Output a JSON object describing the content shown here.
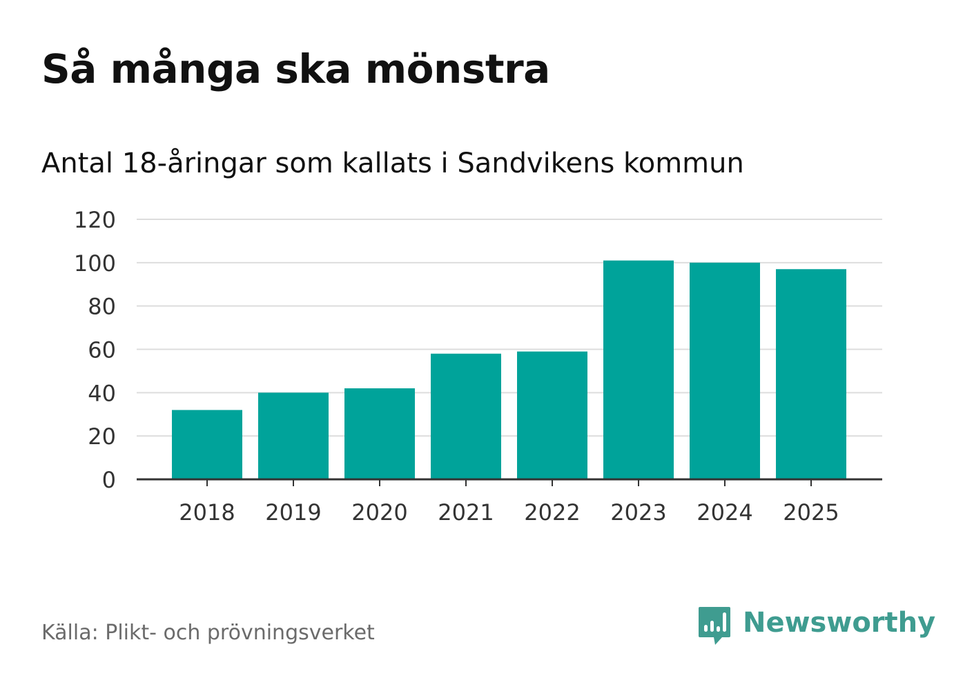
{
  "header": {
    "title": "Så många ska mönstra",
    "subtitle": "Antal 18-åringar som kallats i Sandvikens kommun"
  },
  "footer": {
    "source": "Källa: Plikt- och prövningsverket",
    "brand": "Newsworthy"
  },
  "colors": {
    "bar": "#00a39a",
    "grid": "#dddddd",
    "axis": "#333333",
    "tick_text": "#333333",
    "brand": "#3f9c90"
  },
  "chart_data": {
    "type": "bar",
    "title": "Så många ska mönstra",
    "subtitle": "Antal 18-åringar som kallats i Sandvikens kommun",
    "categories": [
      "2018",
      "2019",
      "2020",
      "2021",
      "2022",
      "2023",
      "2024",
      "2025"
    ],
    "values": [
      32,
      40,
      42,
      58,
      59,
      101,
      100,
      97
    ],
    "xlabel": "",
    "ylabel": "",
    "ylim": [
      0,
      120
    ],
    "yticks": [
      0,
      20,
      40,
      60,
      80,
      100,
      120
    ],
    "grid": true,
    "legend": "none"
  }
}
